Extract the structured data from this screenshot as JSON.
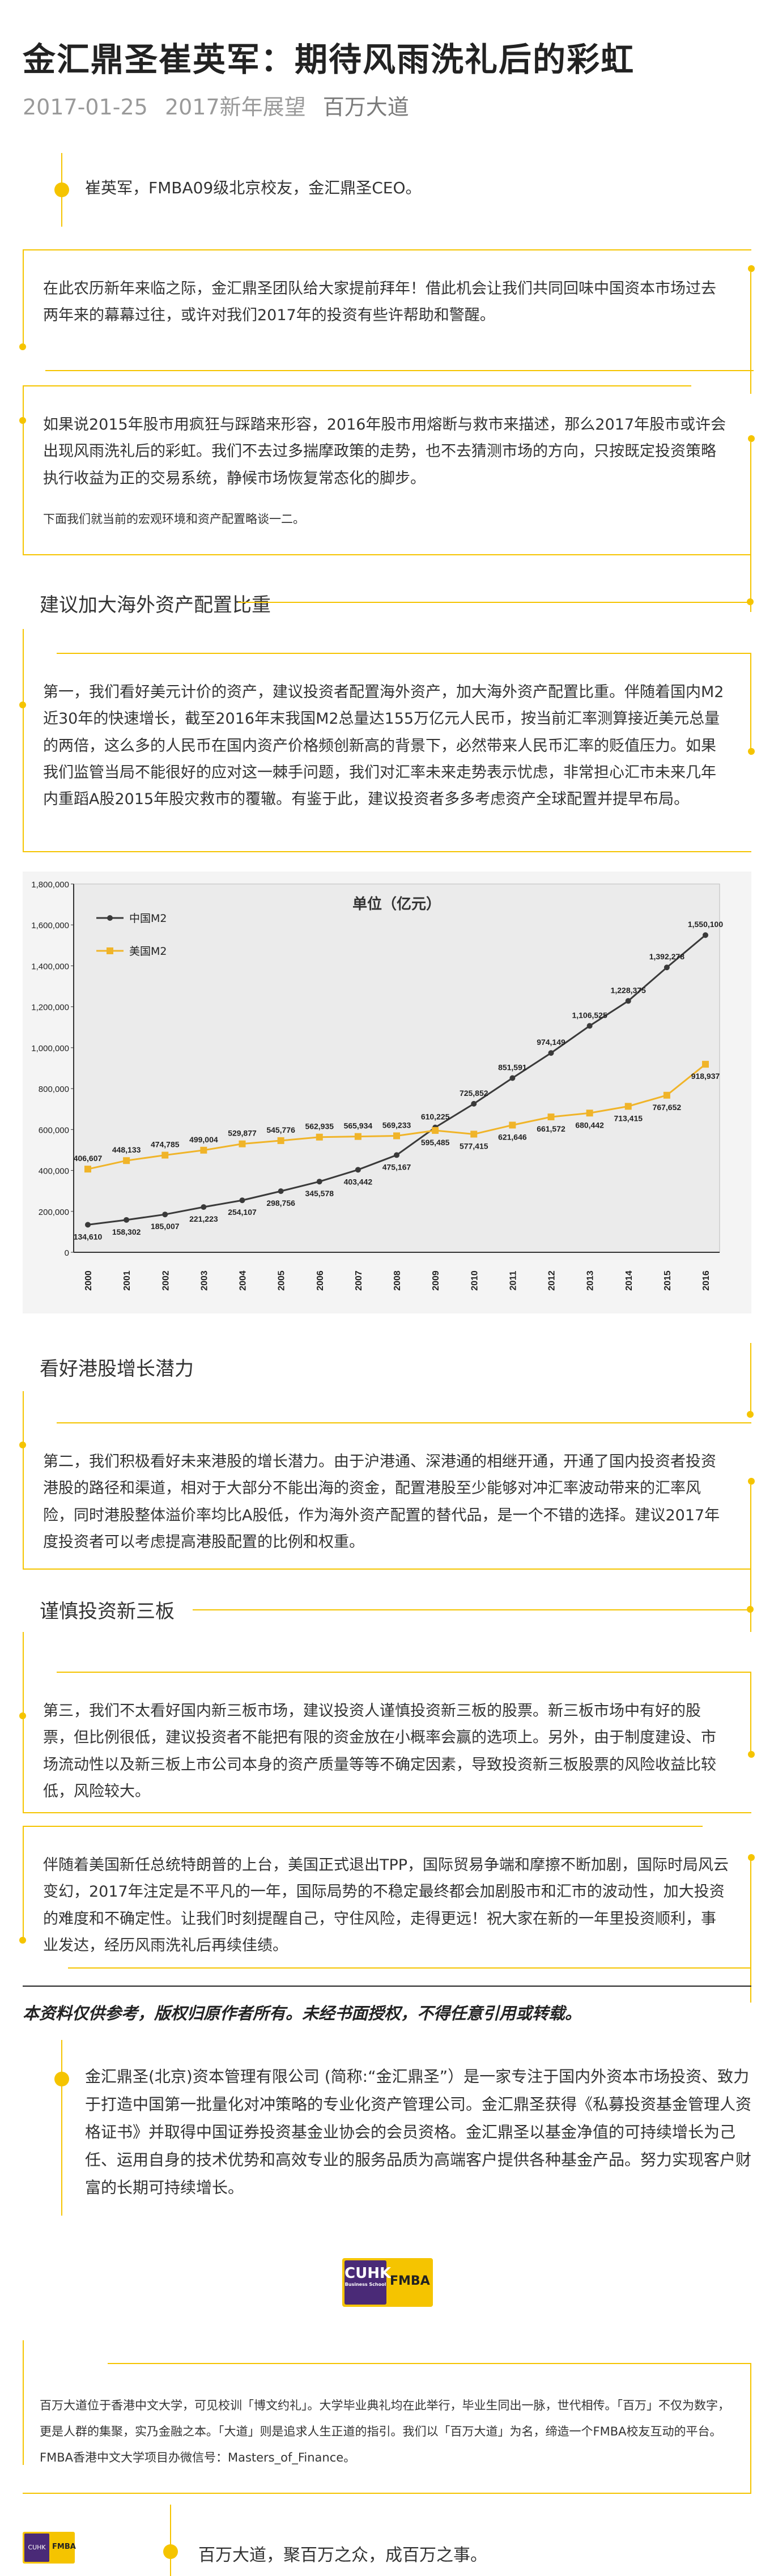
{
  "article": {
    "title": "金汇鼎圣崔英军：期待风雨洗礼后的彩虹",
    "date": "2017-01-25",
    "category": "2017新年展望",
    "account": "百万大道"
  },
  "intro": "崔英军，FMBA09级北京校友，金汇鼎圣CEO。",
  "paragraphs": {
    "p1": "在此农历新年来临之际，金汇鼎圣团队给大家提前拜年！借此机会让我们共同回味中国资本市场过去两年来的幕幕过往，或许对我们2017年的投资有些许帮助和警醒。",
    "p2": "如果说2015年股市用疯狂与踩踏来形容，2016年股市用熔断与救市来描述，那么2017年股市或许会出现风雨洗礼后的彩虹。我们不去过多揣摩政策的走势，也不去猜测市场的方向，只按既定投资策略执行收益为正的交易系统，静候市场恢复常态化的脚步。",
    "p2_note": "下面我们就当前的宏观环境和资产配置略谈一二。",
    "s1_title": "建议加大海外资产配置比重",
    "p3": "第一，我们看好美元计价的资产，建议投资者配置海外资产，加大海外资产配置比重。伴随着国内M2近30年的快速增长，截至2016年末我国M2总量达155万亿元人民币，按当前汇率测算接近美元总量的两倍，这么多的人民币在国内资产价格频创新高的背景下，必然带来人民币汇率的贬值压力。如果我们监管当局不能很好的应对这一棘手问题，我们对汇率未来走势表示忧虑，非常担心汇市未来几年内重蹈A股2015年股灾救市的覆辙。有鉴于此，建议投资者多多考虑资产全球配置并提早布局。",
    "s2_title": "看好港股增长潜力",
    "p4": "第二，我们积极看好未来港股的增长潜力。由于沪港通、深港通的相继开通，开通了国内投资者投资港股的路径和渠道，相对于大部分不能出海的资金，配置港股至少能够对冲汇率波动带来的汇率风险，同时港股整体溢价率均比A股低，作为海外资产配置的替代品，是一个不错的选择。建议2017年度投资者可以考虑提高港股配置的比例和权重。",
    "s3_title": "谨慎投资新三板",
    "p5": "第三，我们不太看好国内新三板市场，建议投资人谨慎投资新三板的股票。新三板市场中有好的股票，但比例很低，建议投资者不能把有限的资金放在小概率会赢的选项上。另外，由于制度建设、市场流动性以及新三板上市公司本身的资产质量等等不确定因素，导致投资新三板股票的风险收益比较低，风险较大。",
    "p6": "伴随着美国新任总统特朗普的上台，美国正式退出TPP，国际贸易争端和摩擦不断加剧，国际时局风云变幻，2017年注定是不平凡的一年，国际局势的不稳定最终都会加剧股市和汇市的波动性，加大投资的难度和不确定性。让我们时刻提醒自己，守住风险，走得更远！祝大家在新的一年里投资顺利，事业发达，经历风雨洗礼后再续佳绩。"
  },
  "disclaimer": "本资料仅供参考，版权归原作者所有。未经书面授权，不得任意引用或转载。",
  "company": "金汇鼎圣(北京)资本管理有限公司 (简称:“金汇鼎圣”）是一家专注于国内外资本市场投资、致力于打造中国第一批量化对冲策略的专业化资产管理公司。金汇鼎圣获得《私募投资基金管理人资格证书》并取得中国证券投资基金业协会的会员资格。金汇鼎圣以基金净值的可持续增长为己任、运用自身的技术优势和高效专业的服务品质为高端客户提供各种基金产品。努力实现客户财富的长期可持续增长。",
  "logo": {
    "emblem": "CUHK",
    "emblem_sub": "Business School",
    "text": "FMBA"
  },
  "about": "百万大道位于香港中文大学，可见校训「博文约礼」。大学毕业典礼均在此举行，毕业生同出一脉，世代相传。「百万」不仅为数字，更是人群的集聚，实乃金融之本。「大道」则是追求人生正道的指引。我们以「百万大道」为名，缔造一个FMBA校友互动的平台。FMBA香港中文大学项目办微信号：Masters_of_Finance。",
  "slogan": "百万大道，聚百万之众，成百万之事。",
  "colors": {
    "accent": "#f5c400",
    "cn_series": "#3a3a3a",
    "us_series": "#f0b429"
  },
  "chart_data": {
    "type": "line",
    "title": "单位（亿元）",
    "x": [
      "2000",
      "2001",
      "2002",
      "2003",
      "2004",
      "2005",
      "2006",
      "2007",
      "2008",
      "2009",
      "2010",
      "2011",
      "2012",
      "2013",
      "2014",
      "2015",
      "2016"
    ],
    "series": [
      {
        "name": "中国M2",
        "values": [
          134610,
          158302,
          185007,
          221223,
          254107,
          298756,
          345578,
          403442,
          475167,
          610225,
          725852,
          851591,
          974149,
          1106525,
          1228375,
          1392278,
          1550100
        ],
        "labels": [
          "134,610",
          "158,302",
          "185,007",
          "221,223",
          "254,107",
          "298,756",
          "345,578",
          "403,442",
          "475,167",
          "610,225",
          "725,852",
          "851,591",
          "974,149",
          "1,106,525",
          "1,228,375",
          "1,392,278",
          "1,550,100"
        ]
      },
      {
        "name": "美国M2",
        "values": [
          406607,
          448133,
          474785,
          499004,
          529877,
          545776,
          562935,
          565934,
          569233,
          595485,
          577415,
          621646,
          661572,
          680442,
          713415,
          767652,
          918937
        ],
        "labels": [
          "406,607",
          "448,133",
          "474,785",
          "499,004",
          "529,877",
          "545,776",
          "562,935",
          "565,934",
          "569,233",
          "595,485",
          "577,415",
          "621,646",
          "661,572",
          "680,442",
          "713,415",
          "767,652",
          "918,937"
        ]
      }
    ],
    "ylim": [
      0,
      1800000
    ],
    "yticks": [
      "0",
      "200,000",
      "400,000",
      "600,000",
      "800,000",
      "1,000,000",
      "1,200,000",
      "1,400,000",
      "1,600,000",
      "1,800,000"
    ],
    "legend": "top-left",
    "grid": false
  }
}
